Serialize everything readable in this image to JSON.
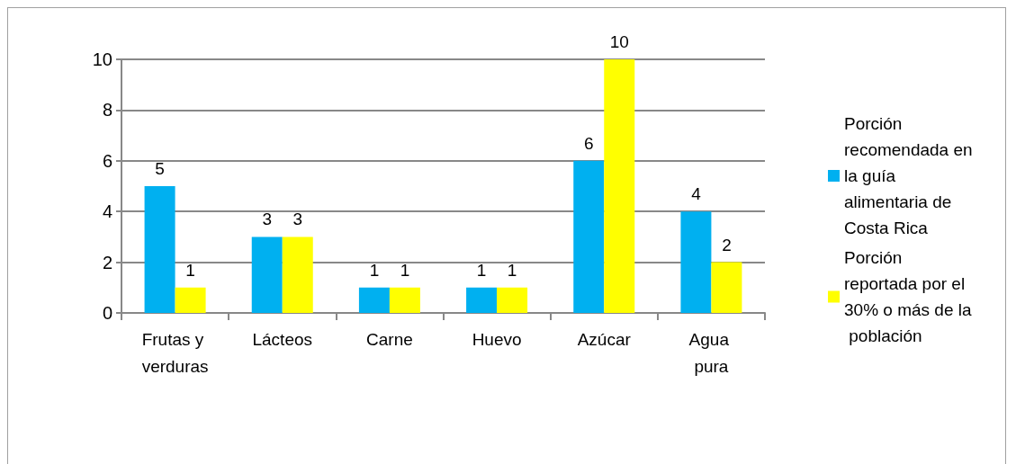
{
  "chart_data": {
    "type": "bar",
    "categories": [
      "Frutas y verduras",
      "Lácteos",
      "Carne",
      "Huevo",
      "Azúcar",
      "Agua pura"
    ],
    "series": [
      {
        "name": "Porción recomendada en la guía alimentaria de Costa Rica",
        "color": "#00b0f0",
        "values": [
          5,
          3,
          1,
          1,
          6,
          4
        ]
      },
      {
        "name": "Porción reportada por el 30% o más de la población",
        "color": "#ffff00",
        "values": [
          1,
          3,
          1,
          1,
          10,
          2
        ]
      }
    ],
    "ylim": [
      0,
      10
    ],
    "yticks": [
      0,
      2,
      4,
      6,
      8,
      10
    ],
    "grid": "y",
    "legend": "right",
    "data_labels": true
  }
}
